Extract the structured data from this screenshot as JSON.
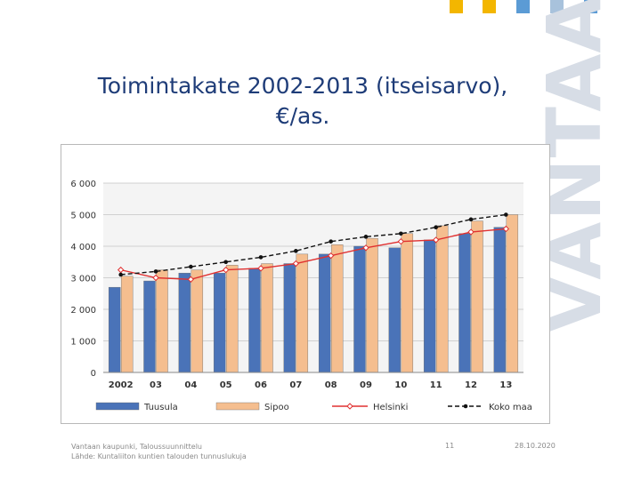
{
  "brand": {
    "name": "VANTAA",
    "square_colors": [
      "#f3b600",
      "#f3b600",
      "#5b9bd5",
      "#a8c2dc",
      "#5b9bd5"
    ]
  },
  "slide": {
    "title_line1": "Toimintakate 2002-2013 (itseisarvo),",
    "title_line2": "€/as."
  },
  "footer": {
    "source_line1": "Vantaan kaupunki, Taloussuunnittelu",
    "source_line2": "Lähde: Kuntaliiton kuntien talouden tunnuslukuja",
    "page_number": "11",
    "date": "28.10.2020"
  },
  "chart_data": {
    "type": "bar",
    "title": "",
    "xlabel": "",
    "ylabel": "",
    "categories": [
      "2002",
      "03",
      "04",
      "05",
      "06",
      "07",
      "08",
      "09",
      "10",
      "11",
      "12",
      "13"
    ],
    "ylim": [
      0,
      6000
    ],
    "yticks": [
      0,
      1000,
      2000,
      3000,
      4000,
      5000,
      6000
    ],
    "ytick_labels": [
      "0",
      "1 000",
      "2 000",
      "3 000",
      "4 000",
      "5 000",
      "6 000"
    ],
    "grid": true,
    "legend_position": "bottom",
    "bar_series": [
      {
        "name": "Tuusula",
        "color": "#4a73b8",
        "values": [
          2700,
          2900,
          3150,
          3150,
          3300,
          3450,
          3750,
          4000,
          3950,
          4200,
          4400,
          4600
        ]
      },
      {
        "name": "Sipoo",
        "color": "#f5be8f",
        "values": [
          3050,
          3250,
          3250,
          3400,
          3450,
          3750,
          4050,
          4250,
          4400,
          4650,
          4800,
          5000
        ]
      }
    ],
    "line_series": [
      {
        "name": "Helsinki",
        "color": "#e03030",
        "dashed": false,
        "values": [
          3250,
          3000,
          2950,
          3250,
          3300,
          3450,
          3700,
          3950,
          4150,
          4200,
          4450,
          4550
        ]
      },
      {
        "name": "Koko maa",
        "color": "#111111",
        "dashed": true,
        "values": [
          3100,
          3200,
          3350,
          3500,
          3650,
          3850,
          4150,
          4300,
          4400,
          4600,
          4850,
          5000
        ]
      }
    ]
  }
}
